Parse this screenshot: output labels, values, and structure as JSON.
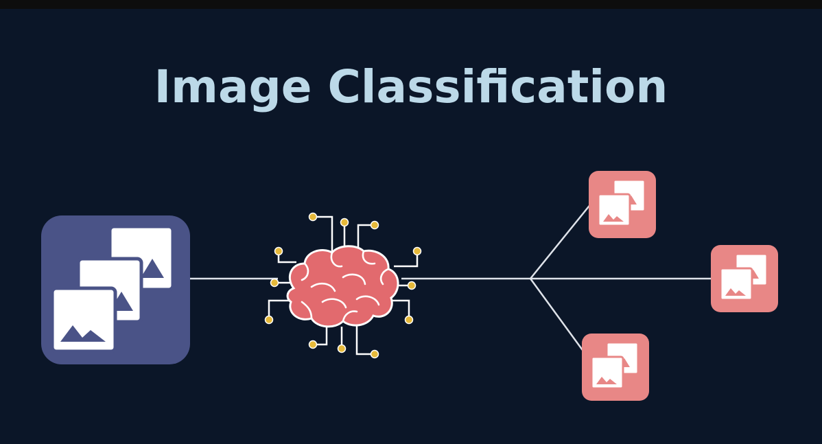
{
  "title": "Image Classification",
  "colors": {
    "background": "#0b1628",
    "title": "#bcd9e8",
    "input_box": "#4a5387",
    "output_box": "#e88786",
    "brain_fill": "#e26a6e",
    "brain_outline": "#ffffff",
    "circuit_dot": "#e6b93a",
    "connector": "#dfe3ea"
  },
  "icons": {
    "input": "stacked-images-icon",
    "model": "brain-circuit-icon",
    "outputs": [
      "image-class-icon",
      "image-class-icon",
      "image-class-icon"
    ]
  }
}
